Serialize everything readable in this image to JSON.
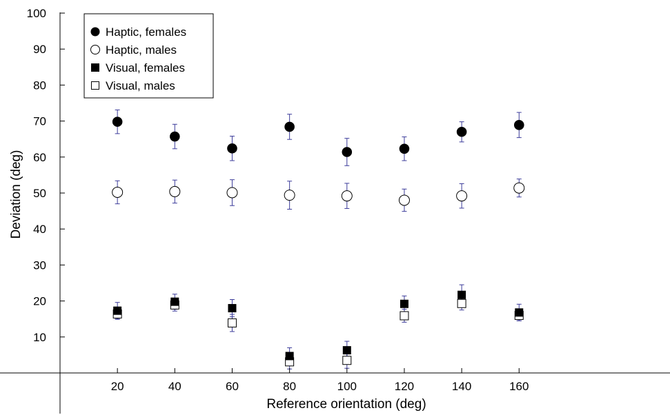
{
  "chart_data": {
    "type": "scatter",
    "title": "",
    "xlabel": "Reference orientation (deg)",
    "ylabel": "Deviation (deg)",
    "xlim": [
      0,
      170
    ],
    "ylim": [
      0,
      100
    ],
    "x_ticks": [
      20,
      40,
      60,
      80,
      100,
      120,
      140,
      160
    ],
    "y_ticks": [
      10,
      20,
      30,
      40,
      50,
      60,
      70,
      80,
      90,
      100
    ],
    "grid": false,
    "legend_position": "top-left",
    "error_bar_color": "#3b3b9a",
    "series": [
      {
        "name": "Haptic, females",
        "marker": "circle-filled",
        "x": [
          20,
          40,
          60,
          80,
          100,
          120,
          140,
          160
        ],
        "y": [
          69.8,
          65.7,
          62.4,
          68.4,
          61.4,
          62.3,
          67.0,
          68.9
        ],
        "err": [
          3.3,
          3.4,
          3.4,
          3.5,
          3.8,
          3.3,
          2.8,
          3.5
        ]
      },
      {
        "name": "Haptic, males",
        "marker": "circle-open",
        "x": [
          20,
          40,
          60,
          80,
          100,
          120,
          140,
          160
        ],
        "y": [
          50.2,
          50.4,
          50.1,
          49.4,
          49.2,
          48.0,
          49.2,
          51.4
        ],
        "err": [
          3.2,
          3.2,
          3.6,
          3.9,
          3.5,
          3.1,
          3.4,
          2.5
        ]
      },
      {
        "name": "Visual, females",
        "marker": "square-filled",
        "x": [
          20,
          40,
          60,
          80,
          100,
          120,
          140,
          160
        ],
        "y": [
          17.3,
          19.8,
          18.0,
          4.7,
          6.3,
          19.2,
          21.7,
          16.8
        ],
        "err": [
          2.3,
          2.1,
          2.4,
          2.3,
          2.5,
          2.2,
          2.8,
          2.3
        ]
      },
      {
        "name": "Visual, males",
        "marker": "square-open",
        "x": [
          20,
          40,
          60,
          80,
          100,
          120,
          140,
          160
        ],
        "y": [
          16.4,
          18.9,
          13.9,
          3.1,
          3.5,
          15.9,
          19.3,
          16.0
        ],
        "err": [
          1.5,
          1.7,
          2.4,
          2.0,
          2.2,
          1.8,
          1.8,
          1.5
        ]
      }
    ]
  }
}
